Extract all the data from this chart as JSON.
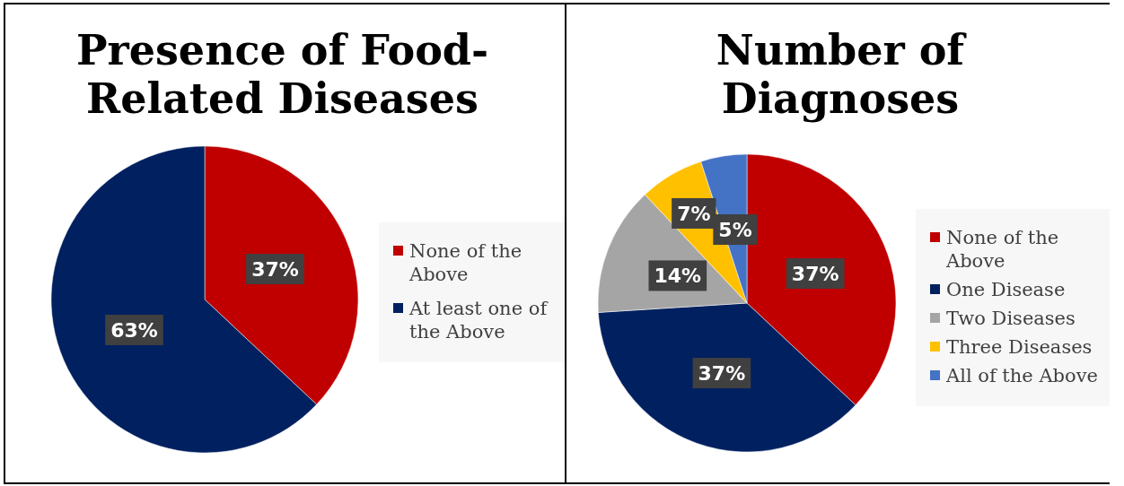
{
  "chart_data": [
    {
      "type": "pie",
      "title": "Presence of Food-Related Diseases",
      "categories": [
        "None of the Above",
        "At least one of the Above"
      ],
      "values": [
        37,
        63
      ],
      "colors": [
        "#c00000",
        "#002060"
      ],
      "data_labels": true,
      "value_labels": [
        "37%",
        "63%"
      ],
      "legend": "right"
    },
    {
      "type": "pie",
      "title": "Number of Diagnoses",
      "categories": [
        "None of the Above",
        "One Disease",
        "Two Diseases",
        "Three Diseases",
        "All of the Above"
      ],
      "values": [
        37,
        37,
        14,
        7,
        5
      ],
      "colors": [
        "#c00000",
        "#002060",
        "#a5a5a5",
        "#ffc000",
        "#4472c4"
      ],
      "data_labels": true,
      "value_labels": [
        "37%",
        "37%",
        "14%",
        "7%",
        "5%"
      ],
      "legend": "right"
    }
  ]
}
